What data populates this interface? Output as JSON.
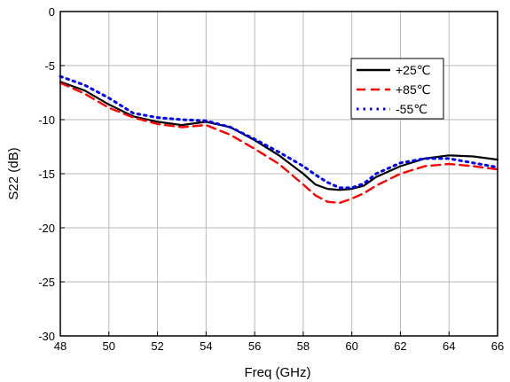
{
  "chart_data": {
    "type": "line",
    "title": "",
    "xlabel": "Freq (GHz)",
    "ylabel": "S22 (dB)",
    "xlim": [
      48,
      66
    ],
    "ylim": [
      -30,
      0
    ],
    "x_ticks": [
      "48",
      "50",
      "52",
      "54",
      "56",
      "58",
      "60",
      "62",
      "64",
      "66"
    ],
    "y_ticks": [
      "0",
      "-5",
      "-10",
      "-15",
      "-20",
      "-25",
      "-30"
    ],
    "grid": true,
    "legend_position": "top-right",
    "series": [
      {
        "name": "+25℃",
        "color": "#000000",
        "style": "solid",
        "points": [
          [
            48,
            -6.5
          ],
          [
            49,
            -7.3
          ],
          [
            50,
            -8.6
          ],
          [
            51,
            -9.7
          ],
          [
            52,
            -10.2
          ],
          [
            53,
            -10.5
          ],
          [
            54,
            -10.2
          ],
          [
            55,
            -10.7
          ],
          [
            56,
            -11.9
          ],
          [
            57,
            -13.3
          ],
          [
            58,
            -15.0
          ],
          [
            58.5,
            -16.0
          ],
          [
            59,
            -16.4
          ],
          [
            59.5,
            -16.5
          ],
          [
            60,
            -16.4
          ],
          [
            60.5,
            -16.1
          ],
          [
            61,
            -15.3
          ],
          [
            62,
            -14.3
          ],
          [
            63,
            -13.6
          ],
          [
            64,
            -13.3
          ],
          [
            65,
            -13.4
          ],
          [
            66,
            -13.7
          ]
        ]
      },
      {
        "name": "+85℃",
        "color": "#ff0000",
        "style": "dashed",
        "points": [
          [
            48,
            -6.6
          ],
          [
            49,
            -7.6
          ],
          [
            50,
            -8.9
          ],
          [
            51,
            -9.8
          ],
          [
            52,
            -10.4
          ],
          [
            53,
            -10.7
          ],
          [
            54,
            -10.5
          ],
          [
            55,
            -11.4
          ],
          [
            56,
            -12.7
          ],
          [
            57,
            -14.1
          ],
          [
            58,
            -16.0
          ],
          [
            58.5,
            -17.0
          ],
          [
            59,
            -17.6
          ],
          [
            59.5,
            -17.7
          ],
          [
            60,
            -17.3
          ],
          [
            60.5,
            -16.8
          ],
          [
            61,
            -16.1
          ],
          [
            62,
            -15.0
          ],
          [
            63,
            -14.3
          ],
          [
            64,
            -14.1
          ],
          [
            65,
            -14.3
          ],
          [
            66,
            -14.6
          ]
        ]
      },
      {
        "name": "-55℃",
        "color": "#0000ff",
        "style": "dotted",
        "points": [
          [
            48,
            -6.0
          ],
          [
            49,
            -6.8
          ],
          [
            50,
            -8.0
          ],
          [
            51,
            -9.4
          ],
          [
            52,
            -9.8
          ],
          [
            53,
            -10.0
          ],
          [
            54,
            -10.1
          ],
          [
            55,
            -10.7
          ],
          [
            56,
            -11.8
          ],
          [
            57,
            -13.0
          ],
          [
            58,
            -14.3
          ],
          [
            58.5,
            -15.1
          ],
          [
            59,
            -15.8
          ],
          [
            59.5,
            -16.3
          ],
          [
            60,
            -16.3
          ],
          [
            60.5,
            -15.9
          ],
          [
            61,
            -15.0
          ],
          [
            62,
            -14.0
          ],
          [
            63,
            -13.6
          ],
          [
            64,
            -13.6
          ],
          [
            65,
            -14.0
          ],
          [
            66,
            -14.4
          ]
        ]
      }
    ]
  }
}
